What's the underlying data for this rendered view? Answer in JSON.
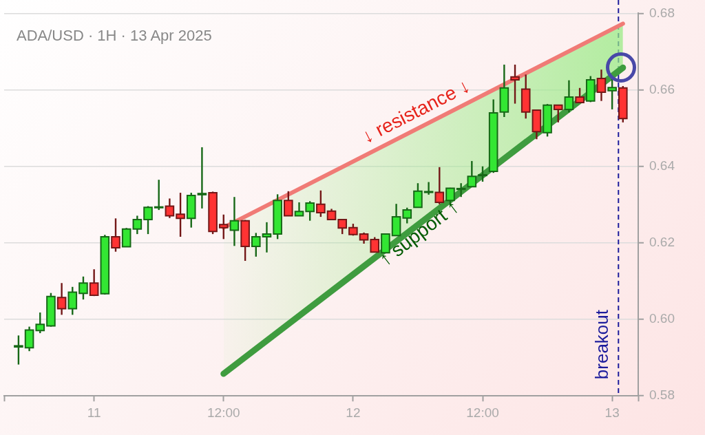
{
  "chart_data": {
    "type": "candlestick",
    "title": "ADA/USD · 1H · 13 Apr 2025",
    "x": [
      "2025-04-10T17:00",
      "2025-04-10T18:00",
      "2025-04-10T19:00",
      "2025-04-10T20:00",
      "2025-04-10T21:00",
      "2025-04-10T22:00",
      "2025-04-10T23:00",
      "2025-04-11T00:00",
      "2025-04-11T01:00",
      "2025-04-11T02:00",
      "2025-04-11T03:00",
      "2025-04-11T04:00",
      "2025-04-11T05:00",
      "2025-04-11T06:00",
      "2025-04-11T07:00",
      "2025-04-11T08:00",
      "2025-04-11T09:00",
      "2025-04-11T10:00",
      "2025-04-11T11:00",
      "2025-04-11T12:00",
      "2025-04-11T13:00",
      "2025-04-11T14:00",
      "2025-04-11T15:00",
      "2025-04-11T16:00",
      "2025-04-11T17:00",
      "2025-04-11T18:00",
      "2025-04-11T19:00",
      "2025-04-11T20:00",
      "2025-04-11T21:00",
      "2025-04-11T22:00",
      "2025-04-11T23:00",
      "2025-04-12T00:00",
      "2025-04-12T01:00",
      "2025-04-12T02:00",
      "2025-04-12T03:00",
      "2025-04-12T04:00",
      "2025-04-12T05:00",
      "2025-04-12T06:00",
      "2025-04-12T07:00",
      "2025-04-12T08:00",
      "2025-04-12T09:00",
      "2025-04-12T10:00",
      "2025-04-12T11:00",
      "2025-04-12T12:00",
      "2025-04-12T13:00",
      "2025-04-12T14:00",
      "2025-04-12T15:00",
      "2025-04-12T16:00",
      "2025-04-12T17:00",
      "2025-04-12T18:00",
      "2025-04-12T19:00",
      "2025-04-12T20:00",
      "2025-04-12T21:00",
      "2025-04-12T22:00",
      "2025-04-12T23:00",
      "2025-04-13T00:00",
      "2025-04-13T01:00"
    ],
    "ohlc": [
      [
        0.5928,
        0.5958,
        0.5882,
        0.5931
      ],
      [
        0.5926,
        0.5981,
        0.5917,
        0.5972
      ],
      [
        0.5971,
        0.6018,
        0.5964,
        0.5987
      ],
      [
        0.5983,
        0.6069,
        0.5981,
        0.606
      ],
      [
        0.6057,
        0.6095,
        0.6012,
        0.6028
      ],
      [
        0.6028,
        0.6085,
        0.6012,
        0.6071
      ],
      [
        0.6068,
        0.6112,
        0.6052,
        0.6095
      ],
      [
        0.6095,
        0.6131,
        0.6061,
        0.6063
      ],
      [
        0.6067,
        0.6221,
        0.6065,
        0.6216
      ],
      [
        0.6216,
        0.6264,
        0.6177,
        0.6187
      ],
      [
        0.619,
        0.6239,
        0.619,
        0.6236
      ],
      [
        0.6236,
        0.6271,
        0.6223,
        0.6261
      ],
      [
        0.6261,
        0.6296,
        0.6223,
        0.6293
      ],
      [
        0.6292,
        0.6365,
        0.6286,
        0.6294
      ],
      [
        0.6296,
        0.6316,
        0.6265,
        0.6271
      ],
      [
        0.6275,
        0.6331,
        0.6216,
        0.6264
      ],
      [
        0.6264,
        0.6331,
        0.624,
        0.6324
      ],
      [
        0.6326,
        0.645,
        0.629,
        0.6329
      ],
      [
        0.6331,
        0.6334,
        0.6223,
        0.623
      ],
      [
        0.6248,
        0.6274,
        0.621,
        0.624
      ],
      [
        0.6233,
        0.632,
        0.6192,
        0.6258
      ],
      [
        0.6258,
        0.626,
        0.6153,
        0.6191
      ],
      [
        0.6191,
        0.6226,
        0.6164,
        0.6216
      ],
      [
        0.6216,
        0.6254,
        0.6175,
        0.6223
      ],
      [
        0.6223,
        0.6327,
        0.621,
        0.6311
      ],
      [
        0.6311,
        0.6335,
        0.627,
        0.6271
      ],
      [
        0.6271,
        0.6306,
        0.627,
        0.6282
      ],
      [
        0.6282,
        0.6309,
        0.6258,
        0.6304
      ],
      [
        0.6301,
        0.6337,
        0.6268,
        0.6279
      ],
      [
        0.6283,
        0.6289,
        0.626,
        0.6261
      ],
      [
        0.6261,
        0.6262,
        0.6223,
        0.6239
      ],
      [
        0.624,
        0.625,
        0.6219,
        0.6222
      ],
      [
        0.6223,
        0.6227,
        0.6198,
        0.6208
      ],
      [
        0.6209,
        0.6215,
        0.6175,
        0.6176
      ],
      [
        0.6174,
        0.6225,
        0.6173,
        0.6223
      ],
      [
        0.6219,
        0.6302,
        0.6218,
        0.6268
      ],
      [
        0.6265,
        0.6292,
        0.6251,
        0.6286
      ],
      [
        0.6293,
        0.6356,
        0.6292,
        0.6335
      ],
      [
        0.6332,
        0.6359,
        0.6326,
        0.6334
      ],
      [
        0.6332,
        0.6398,
        0.6301,
        0.6306
      ],
      [
        0.6311,
        0.6344,
        0.6298,
        0.6343
      ],
      [
        0.634,
        0.6356,
        0.632,
        0.6342
      ],
      [
        0.6347,
        0.6414,
        0.6346,
        0.6374
      ],
      [
        0.6376,
        0.64,
        0.636,
        0.6378
      ],
      [
        0.6387,
        0.6575,
        0.6383,
        0.654
      ],
      [
        0.6542,
        0.6666,
        0.6529,
        0.6605
      ],
      [
        0.6634,
        0.6666,
        0.6564,
        0.6626
      ],
      [
        0.6602,
        0.664,
        0.6525,
        0.6542
      ],
      [
        0.6547,
        0.6548,
        0.6471,
        0.6491
      ],
      [
        0.6488,
        0.6563,
        0.6478,
        0.656
      ],
      [
        0.656,
        0.6561,
        0.6515,
        0.6549
      ],
      [
        0.6549,
        0.6625,
        0.6541,
        0.6581
      ],
      [
        0.6581,
        0.6605,
        0.6566,
        0.6567
      ],
      [
        0.6571,
        0.6636,
        0.6568,
        0.6626
      ],
      [
        0.663,
        0.6653,
        0.6571,
        0.6594
      ],
      [
        0.6598,
        0.6632,
        0.6549,
        0.6606
      ],
      [
        0.6605,
        0.661,
        0.6515,
        0.6525
      ]
    ],
    "colors": [
      "#33e633",
      "#33e633",
      "#33e633",
      "#33e633",
      "#ff3333",
      "#33e633",
      "#33e633",
      "#ff3333",
      "#33e633",
      "#ff3333",
      "#33e633",
      "#33e633",
      "#33e633",
      "#33e633",
      "#ff3333",
      "#ff3333",
      "#33e633",
      "#33e633",
      "#ff3333",
      "#ff3333",
      "#33e633",
      "#ff3333",
      "#33e633",
      "#33e633",
      "#33e633",
      "#ff3333",
      "#33e633",
      "#33e633",
      "#ff3333",
      "#ff3333",
      "#ff3333",
      "#ff3333",
      "#ff3333",
      "#ff3333",
      "#33e633",
      "#33e633",
      "#33e633",
      "#33e633",
      "#33e633",
      "#ff3333",
      "#33e633",
      "#33e633",
      "#33e633",
      "#33e633",
      "#33e633",
      "#33e633",
      "#ff3333",
      "#ff3333",
      "#ff3333",
      "#33e633",
      "#ff3333",
      "#33e633",
      "#ff3333",
      "#33e633",
      "#ff3333",
      "#33e633",
      "#ff3333"
    ],
    "series": [
      {
        "name": "↓ resistance ↓",
        "type": "line",
        "color": "#f07b76",
        "x": [
          "2025-04-11T12:00",
          "2025-04-13T01:00"
        ],
        "values": [
          0.624,
          0.6773
        ]
      },
      {
        "name": "↑ support ↑",
        "type": "line",
        "color": "#3f9c3f",
        "x": [
          "2025-04-11T12:00",
          "2025-04-13T01:00"
        ],
        "values": [
          0.5858,
          0.6658
        ],
        "lower": [
          0.5858,
          0.6658
        ],
        "upper": [
          0.624,
          0.6773
        ]
      }
    ],
    "ref_lines": [
      {
        "axis": "x",
        "value": "2025-04-13T00:35",
        "label": "breakout",
        "color": "#1c1c9c",
        "line_style": "dashed"
      }
    ],
    "xlim": [
      "2025-04-10T15:40",
      "2025-04-13T02:25"
    ],
    "xticks": [
      {
        "value": "2025-04-10T15:40",
        "label": null
      },
      {
        "value": "2025-04-11T00:00",
        "label": "11"
      },
      {
        "value": "2025-04-11T12:00",
        "label": "12:00"
      },
      {
        "value": "2025-04-12T00:00",
        "label": "12"
      },
      {
        "value": "2025-04-12T12:00",
        "label": "12:00"
      },
      {
        "value": "2025-04-13T00:00",
        "label": "13"
      },
      {
        "value": "2025-04-13T02:25",
        "label": null
      }
    ],
    "ylim": [
      0.58,
      0.68
    ],
    "yticks": [
      {
        "value": 0.58,
        "label": "0.58"
      },
      {
        "value": 0.6,
        "label": "0.60"
      },
      {
        "value": 0.62,
        "label": "0.62"
      },
      {
        "value": 0.64,
        "label": "0.64"
      },
      {
        "value": 0.66,
        "label": "0.66"
      },
      {
        "value": 0.68,
        "label": "0.68"
      }
    ],
    "grid": "y"
  }
}
